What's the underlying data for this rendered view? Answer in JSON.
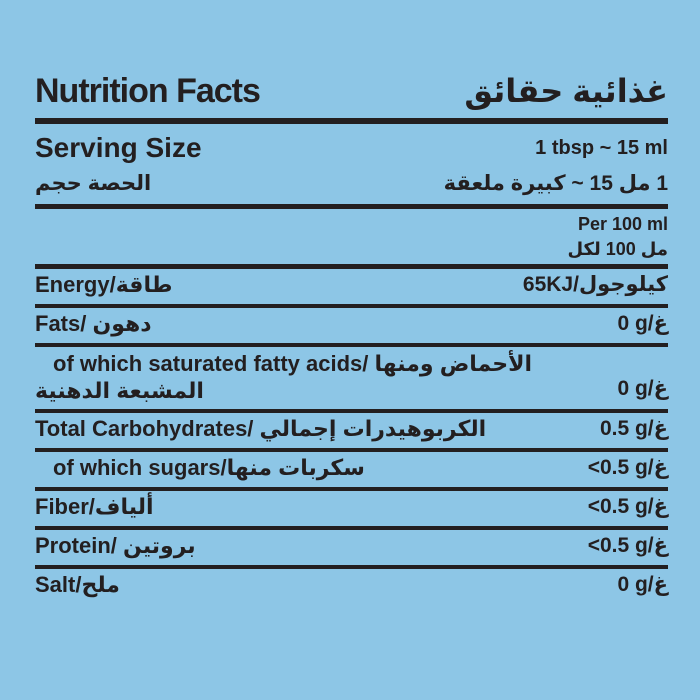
{
  "label": {
    "colors": {
      "background": "#8dc6e6",
      "ink": "#231f20"
    },
    "title_en": "Nutrition Facts",
    "title_ar": "حقائق ‎غذائية",
    "serving": {
      "label_en": "Serving Size",
      "label_ar": "حجم ‎الحصة",
      "value_en": "1 tbsp ~ 15 ml",
      "value_ar": "ملعقة‎ كبيرة‎ ~ 15 مل‎ 1"
    },
    "per": {
      "line_en": "Per 100 ml",
      "line_ar": "لكل‎ 100 مل"
    },
    "rows": [
      {
        "label": "Energy/طاقة",
        "value": "65KJ/كيلوجول"
      },
      {
        "label": "Fats/ دهون",
        "value": "0 g/غ"
      },
      {
        "label": "of which saturated fatty acids/ ومنها‎ الأحماض‎ الدهنية‎ المشبعة",
        "value": "0 g/غ"
      },
      {
        "label": "Total Carbohydrates/ إجمالي‎ الكربوهيدرات",
        "value": "0.5 g/غ"
      },
      {
        "label": "of which sugars/منها‎ سكربات",
        "value": "<0.5 g/غ"
      },
      {
        "label": "Fiber/ألياف",
        "value": "<0.5 g/غ"
      },
      {
        "label": "Protein/ بروتين",
        "value": "<0.5 g/غ"
      },
      {
        "label": "Salt/ملح",
        "value": "0 g/غ"
      }
    ]
  }
}
